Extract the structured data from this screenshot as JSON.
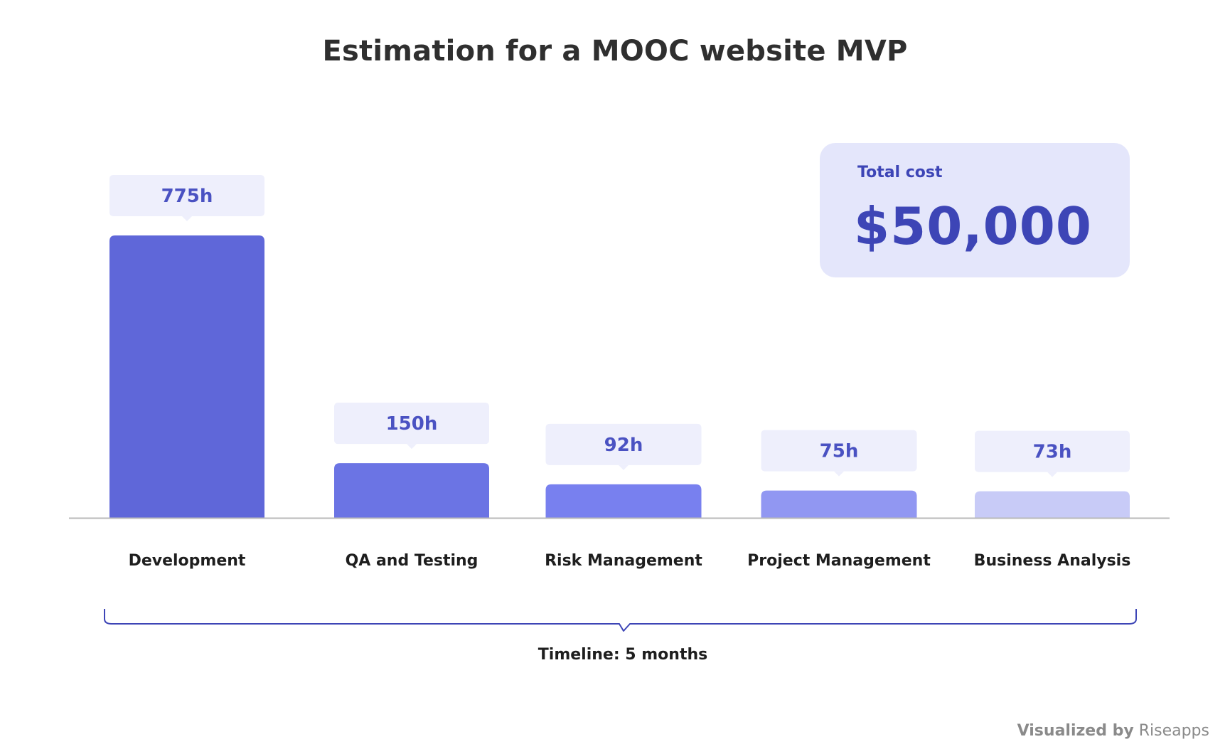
{
  "chart_data": {
    "type": "bar",
    "title": "Estimation for a MOOC website MVP",
    "xlabel": "",
    "ylabel": "",
    "categories": [
      "Development",
      "QA and Testing",
      "Risk Management",
      "Project Management",
      "Business Analysis"
    ],
    "values": [
      775,
      150,
      92,
      75,
      73
    ],
    "value_labels": [
      "775h",
      "150h",
      "92h",
      "75h",
      "73h"
    ],
    "unit": "h",
    "grid": false,
    "legend": "none",
    "colors": [
      "#5f67d9",
      "#6b74e4",
      "#7880ef",
      "#9197f2",
      "#c8cbf7"
    ],
    "label_box_color": "#eeeffc",
    "label_text_color": "#4a52c2",
    "axis_color": "#b9b9b9"
  },
  "cost_card": {
    "label": "Total cost",
    "value": "$50,000",
    "background": "#e4e6fb",
    "text_color": "#3d45b6"
  },
  "timeline": {
    "label": "Timeline: 5 months",
    "bracket_color": "#3d45b6"
  },
  "credit": {
    "prefix": "Visualized by",
    "brand": "Riseapps"
  }
}
